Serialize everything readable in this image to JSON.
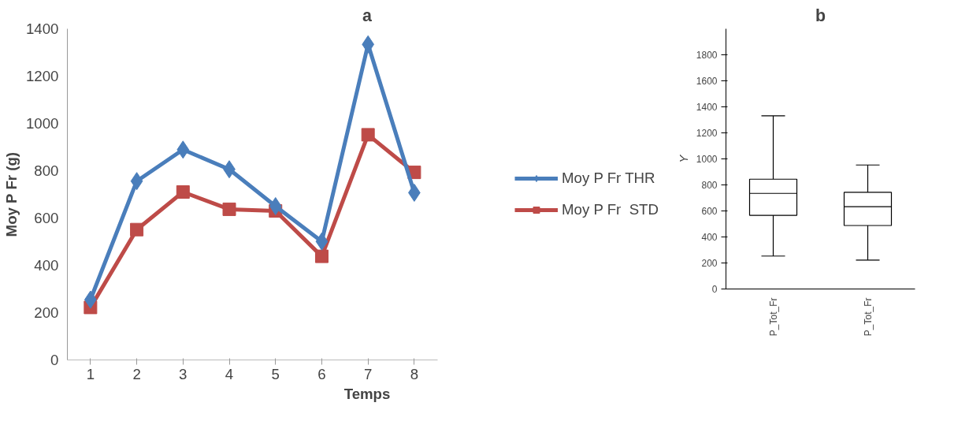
{
  "chart_data": [
    {
      "type": "line",
      "title": "a",
      "xlabel": "Temps",
      "ylabel": "Moy P Fr (g)",
      "categories": [
        "1",
        "2",
        "3",
        "4",
        "5",
        "6",
        "7",
        "8"
      ],
      "ylim": [
        0,
        1400
      ],
      "yticks": [
        0,
        200,
        400,
        600,
        800,
        1000,
        1200,
        1400
      ],
      "grid": false,
      "legend": "right",
      "line_style": "solid",
      "series": [
        {
          "name": "Moy P Fr THR",
          "color": "#4a7ebb",
          "marker": "diamond",
          "values": [
            255,
            756,
            889,
            806,
            650,
            501,
            1334,
            707
          ]
        },
        {
          "name": "Moy P Fr  STD",
          "color": "#be4b48",
          "marker": "square",
          "values": [
            222,
            551,
            710,
            637,
            630,
            438,
            952,
            793
          ]
        }
      ]
    },
    {
      "type": "box",
      "title": "b",
      "ylabel": "Y",
      "categories": [
        "P_Tot_Fr",
        "P_Tot_Fr"
      ],
      "ylim": [
        0,
        2000
      ],
      "yticks": [
        0,
        200,
        400,
        600,
        800,
        1000,
        1200,
        1400,
        1600,
        1800
      ],
      "grid": false,
      "boxes": [
        {
          "low": 253,
          "q1": 566,
          "median": 735,
          "q3": 844,
          "high": 1331
        },
        {
          "low": 222,
          "q1": 488,
          "median": 632,
          "q3": 743,
          "high": 953
        }
      ]
    }
  ]
}
